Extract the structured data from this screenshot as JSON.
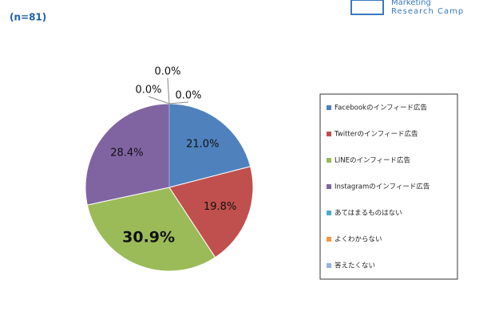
{
  "subtitle": "(n=81)",
  "logo": {
    "line1": "Marketing",
    "line2": "Research Camp"
  },
  "chart_data": {
    "type": "pie",
    "categories": [
      "Facebookのインフィード広告",
      "Twitterのインフィード広告",
      "LINEのインフィード広告",
      "Instagramのインフィード広告",
      "あてはまるものはない",
      "よくわからない",
      "答えたくない"
    ],
    "values": [
      21.0,
      19.8,
      30.9,
      28.4,
      0.0,
      0.0,
      0.0
    ],
    "value_labels": [
      "21.0%",
      "19.8%",
      "30.9%",
      "28.4%",
      "0.0%",
      "0.0%",
      "0.0%"
    ],
    "colors": [
      "#4f81bd",
      "#c0504d",
      "#9bbb59",
      "#8064a2",
      "#4bacc6",
      "#f79646",
      "#93b3dc"
    ],
    "legend": "right"
  }
}
